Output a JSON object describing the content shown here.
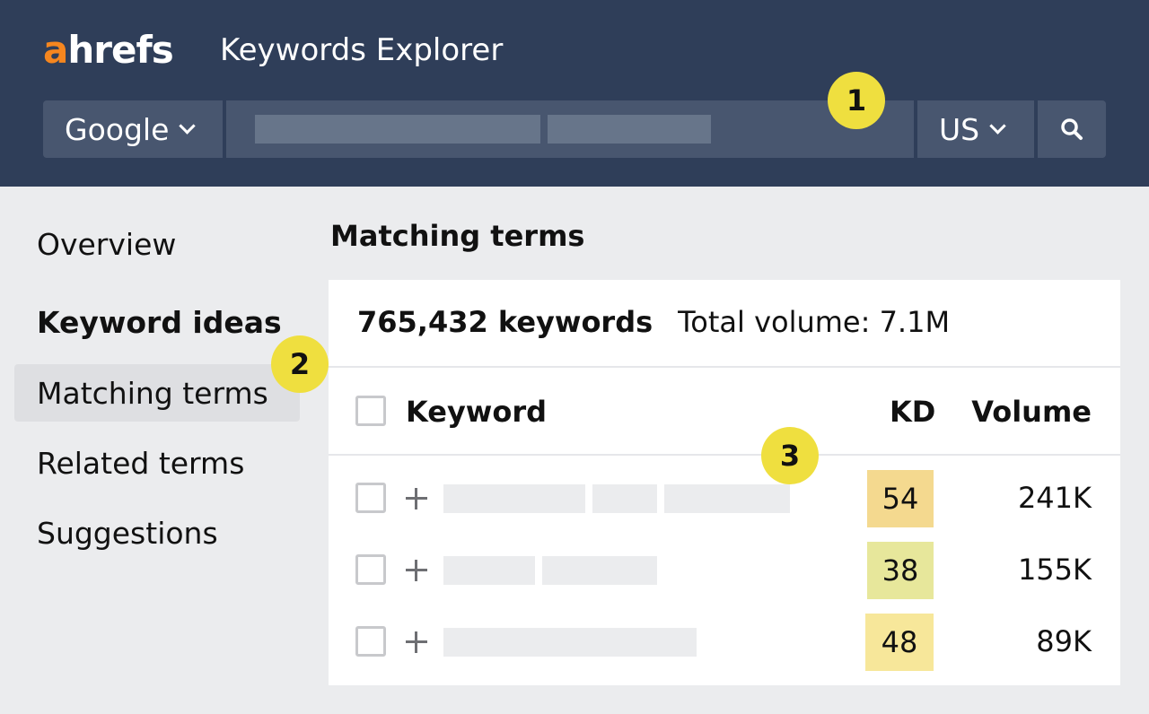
{
  "header": {
    "logo_a": "a",
    "logo_rest": "hrefs",
    "app_title": "Keywords Explorer",
    "engine": "Google",
    "country": "US",
    "search_icon": "search-icon"
  },
  "badges": [
    "1",
    "2",
    "3"
  ],
  "sidebar": {
    "overview": "Overview",
    "keyword_ideas_heading": "Keyword ideas",
    "items": [
      "Matching terms",
      "Related terms",
      "Suggestions"
    ]
  },
  "main": {
    "title": "Matching terms",
    "keyword_count": "765,432 keywords",
    "total_volume": "Total volume: 7.1M",
    "columns": {
      "keyword": "Keyword",
      "kd": "KD",
      "volume": "Volume"
    },
    "rows": [
      {
        "kd": "54",
        "volume": "241K",
        "kd_color": "#f4d98f"
      },
      {
        "kd": "38",
        "volume": "155K",
        "kd_color": "#e7e79b"
      },
      {
        "kd": "48",
        "volume": "89K",
        "kd_color": "#f7e79a"
      }
    ]
  },
  "colors": {
    "header_bg": "#2f3e59",
    "accent": "#f5861f",
    "badge": "#efdf3f"
  }
}
